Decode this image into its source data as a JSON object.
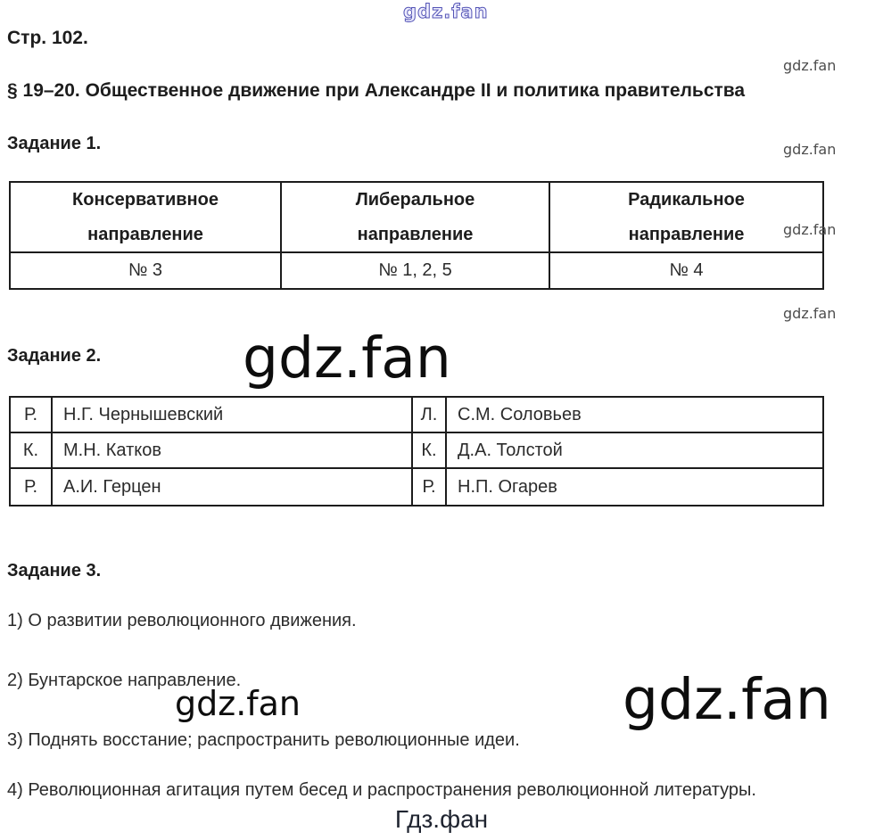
{
  "page": {
    "label": "Стр. 102.",
    "heading": "§ 19–20. Общественное движение при Александре II и политика правительства",
    "footer": "Гдз.фан"
  },
  "watermark": {
    "site": "gdz.fan"
  },
  "task1": {
    "title": "Задание 1.",
    "table": {
      "headers": [
        "Консервативное направление",
        "Либеральное направление",
        "Радикальное направление"
      ],
      "values": [
        "№ 3",
        "№ 1, 2, 5",
        "№ 4"
      ]
    }
  },
  "task2": {
    "title": "Задание 2.",
    "rows": [
      [
        "Р.",
        "Н.Г. Чернышевский",
        "Л.",
        "С.М. Соловьев"
      ],
      [
        "К.",
        "М.Н. Катков",
        "К.",
        "Д.А. Толстой"
      ],
      [
        "Р.",
        "А.И. Герцен",
        "Р.",
        "Н.П. Огарев"
      ]
    ]
  },
  "task3": {
    "title": "Задание 3.",
    "items": [
      "1) О развитии революционного движения.",
      "2) Бунтарское направление.",
      "3) Поднять восстание; распространить революционные идеи.",
      "4) Революционная агитация путем бесед и распространения революционной литературы."
    ]
  }
}
